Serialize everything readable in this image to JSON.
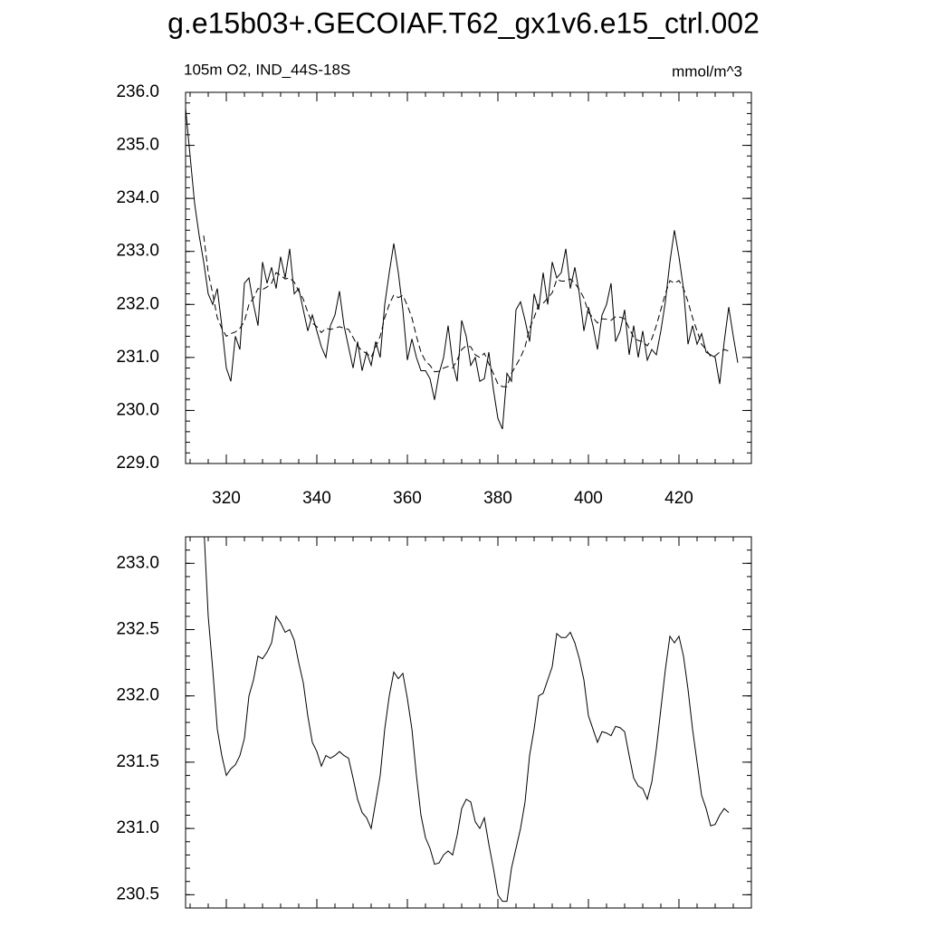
{
  "title": "g.e15b03+.GECOIAF.T62_gx1v6.e15_ctrl.002",
  "chart_data": [
    {
      "type": "line",
      "subtitle": "105m O2, IND_44S-18S",
      "units": "mmol/m^3",
      "xlim": [
        311,
        436
      ],
      "ylim": [
        229,
        236
      ],
      "xticks": [
        320,
        340,
        360,
        380,
        400,
        420
      ],
      "yticks": [
        {
          "value": 229,
          "label": "229.0"
        },
        {
          "value": 230,
          "label": "230.0"
        },
        {
          "value": 231,
          "label": "231.0"
        },
        {
          "value": 232,
          "label": "232.0"
        },
        {
          "value": 233,
          "label": "233.0"
        },
        {
          "value": 234,
          "label": "234.0"
        },
        {
          "value": 235,
          "label": "235.0"
        },
        {
          "value": 236,
          "label": "236.0"
        }
      ],
      "series": [
        {
          "color": "#000000",
          "dash": false,
          "x": [
            311,
            312,
            313,
            314,
            315,
            316,
            317,
            318,
            319,
            320,
            321,
            322,
            323,
            324,
            325,
            326,
            327,
            328,
            329,
            330,
            331,
            332,
            333,
            334,
            335,
            336,
            337,
            338,
            339,
            340,
            341,
            342,
            343,
            344,
            345,
            346,
            347,
            348,
            349,
            350,
            351,
            352,
            353,
            354,
            355,
            356,
            357,
            358,
            359,
            360,
            361,
            362,
            363,
            364,
            365,
            366,
            367,
            368,
            369,
            370,
            371,
            372,
            373,
            374,
            375,
            376,
            377,
            378,
            379,
            380,
            381,
            382,
            383,
            384,
            385,
            386,
            387,
            388,
            389,
            390,
            391,
            392,
            393,
            394,
            395,
            396,
            397,
            398,
            399,
            400,
            401,
            402,
            403,
            404,
            405,
            406,
            407,
            408,
            409,
            410,
            411,
            412,
            413,
            414,
            415,
            416,
            417,
            418,
            419,
            420,
            421,
            422,
            423,
            424,
            425,
            426,
            427,
            428,
            429,
            430,
            431,
            432,
            433
          ],
          "values": [
            235.7,
            234.8,
            233.9,
            233.3,
            232.8,
            232.2,
            232.0,
            232.3,
            231.6,
            230.8,
            230.55,
            231.4,
            231.15,
            232.4,
            232.5,
            232.0,
            231.6,
            232.8,
            232.4,
            232.7,
            232.3,
            232.9,
            232.5,
            233.05,
            232.2,
            232.3,
            231.9,
            231.5,
            231.8,
            231.5,
            231.2,
            231.0,
            231.6,
            231.8,
            232.25,
            231.6,
            231.2,
            230.8,
            231.3,
            230.75,
            231.1,
            230.85,
            231.3,
            231.0,
            232.0,
            232.6,
            233.15,
            232.6,
            231.9,
            230.95,
            231.35,
            231.0,
            230.75,
            230.75,
            230.6,
            230.2,
            230.7,
            231.0,
            231.6,
            230.9,
            230.55,
            231.7,
            231.4,
            230.85,
            231.0,
            230.55,
            230.6,
            231.1,
            230.4,
            229.85,
            229.65,
            230.7,
            230.55,
            231.9,
            232.05,
            231.7,
            231.3,
            232.2,
            231.9,
            232.6,
            232.0,
            232.8,
            232.5,
            232.6,
            233.05,
            232.3,
            232.7,
            232.2,
            231.5,
            231.95,
            231.6,
            231.15,
            231.8,
            232.0,
            232.4,
            231.3,
            231.5,
            231.9,
            231.05,
            231.6,
            231.0,
            231.5,
            230.95,
            231.15,
            231.05,
            231.5,
            232.05,
            232.8,
            233.4,
            232.9,
            232.3,
            231.25,
            231.6,
            231.25,
            231.45,
            231.1,
            231.05,
            231.0,
            230.5,
            231.3,
            231.95,
            231.4,
            230.9
          ]
        },
        {
          "color": "#000000",
          "dash": true,
          "x": [
            315,
            316,
            317,
            318,
            319,
            320,
            321,
            322,
            323,
            324,
            325,
            326,
            327,
            328,
            329,
            330,
            331,
            332,
            333,
            334,
            335,
            336,
            337,
            338,
            339,
            340,
            341,
            342,
            343,
            344,
            345,
            346,
            347,
            348,
            349,
            350,
            351,
            352,
            353,
            354,
            355,
            356,
            357,
            358,
            359,
            360,
            361,
            362,
            363,
            364,
            365,
            366,
            367,
            368,
            369,
            370,
            371,
            372,
            373,
            374,
            375,
            376,
            377,
            378,
            379,
            380,
            381,
            382,
            383,
            384,
            385,
            386,
            387,
            388,
            389,
            390,
            391,
            392,
            393,
            394,
            395,
            396,
            397,
            398,
            399,
            400,
            401,
            402,
            403,
            404,
            405,
            406,
            407,
            408,
            409,
            410,
            411,
            412,
            413,
            414,
            415,
            416,
            417,
            418,
            419,
            420,
            421,
            422,
            423,
            424,
            425,
            426,
            427,
            428,
            429,
            430,
            431
          ],
          "values": [
            233.3,
            232.6,
            232.2,
            231.75,
            231.55,
            231.4,
            231.45,
            231.48,
            231.55,
            231.68,
            232.0,
            232.12,
            232.3,
            232.28,
            232.33,
            232.4,
            232.6,
            232.55,
            232.48,
            232.5,
            232.42,
            232.25,
            232.1,
            231.85,
            231.65,
            231.58,
            231.47,
            231.55,
            231.53,
            231.55,
            231.58,
            231.55,
            231.53,
            231.38,
            231.22,
            231.12,
            231.08,
            231.0,
            231.2,
            231.4,
            231.75,
            232.0,
            232.18,
            232.13,
            232.17,
            231.98,
            231.75,
            231.4,
            231.1,
            230.93,
            230.85,
            230.73,
            230.74,
            230.8,
            230.83,
            230.8,
            230.95,
            231.15,
            231.22,
            231.2,
            231.05,
            231.0,
            231.08,
            230.88,
            230.7,
            230.5,
            230.45,
            230.45,
            230.7,
            230.85,
            231.0,
            231.2,
            231.55,
            231.75,
            232.0,
            232.02,
            232.12,
            232.22,
            232.47,
            232.44,
            232.44,
            232.48,
            232.4,
            232.28,
            232.12,
            231.85,
            231.75,
            231.65,
            231.73,
            231.72,
            231.7,
            231.77,
            231.76,
            231.73,
            231.55,
            231.38,
            231.32,
            231.3,
            231.22,
            231.35,
            231.6,
            231.9,
            232.2,
            232.45,
            232.4,
            232.45,
            232.3,
            232.05,
            231.75,
            231.5,
            231.25,
            231.15,
            231.02,
            231.03,
            231.1,
            231.15,
            231.12
          ]
        }
      ]
    },
    {
      "type": "line",
      "xlim": [
        311,
        436
      ],
      "ylim": [
        230.4,
        233.2
      ],
      "xticks": [
        320,
        340,
        360,
        380,
        400,
        420
      ],
      "yticks": [
        230.5,
        {
          "value": 231,
          "label": "231.0"
        },
        231.5,
        {
          "value": 232,
          "label": "232.0"
        },
        232.5,
        {
          "value": 233,
          "label": "233.0"
        }
      ],
      "series": [
        {
          "color": "#000000",
          "dash": false,
          "x": [
            315,
            316,
            317,
            318,
            319,
            320,
            321,
            322,
            323,
            324,
            325,
            326,
            327,
            328,
            329,
            330,
            331,
            332,
            333,
            334,
            335,
            336,
            337,
            338,
            339,
            340,
            341,
            342,
            343,
            344,
            345,
            346,
            347,
            348,
            349,
            350,
            351,
            352,
            353,
            354,
            355,
            356,
            357,
            358,
            359,
            360,
            361,
            362,
            363,
            364,
            365,
            366,
            367,
            368,
            369,
            370,
            371,
            372,
            373,
            374,
            375,
            376,
            377,
            378,
            379,
            380,
            381,
            382,
            383,
            384,
            385,
            386,
            387,
            388,
            389,
            390,
            391,
            392,
            393,
            394,
            395,
            396,
            397,
            398,
            399,
            400,
            401,
            402,
            403,
            404,
            405,
            406,
            407,
            408,
            409,
            410,
            411,
            412,
            413,
            414,
            415,
            416,
            417,
            418,
            419,
            420,
            421,
            422,
            423,
            424,
            425,
            426,
            427,
            428,
            429,
            430,
            431
          ],
          "values": [
            233.3,
            232.6,
            232.2,
            231.75,
            231.55,
            231.4,
            231.45,
            231.48,
            231.55,
            231.68,
            232.0,
            232.12,
            232.3,
            232.28,
            232.33,
            232.4,
            232.6,
            232.55,
            232.48,
            232.5,
            232.42,
            232.25,
            232.1,
            231.85,
            231.65,
            231.58,
            231.47,
            231.55,
            231.53,
            231.55,
            231.58,
            231.55,
            231.53,
            231.38,
            231.22,
            231.12,
            231.08,
            231.0,
            231.2,
            231.4,
            231.75,
            232.0,
            232.18,
            232.13,
            232.17,
            231.98,
            231.75,
            231.4,
            231.1,
            230.93,
            230.85,
            230.73,
            230.74,
            230.8,
            230.83,
            230.8,
            230.95,
            231.15,
            231.22,
            231.2,
            231.05,
            231.0,
            231.08,
            230.88,
            230.7,
            230.5,
            230.45,
            230.45,
            230.7,
            230.85,
            231.0,
            231.2,
            231.55,
            231.75,
            232.0,
            232.02,
            232.12,
            232.22,
            232.47,
            232.44,
            232.44,
            232.48,
            232.4,
            232.28,
            232.12,
            231.85,
            231.75,
            231.65,
            231.73,
            231.72,
            231.7,
            231.77,
            231.76,
            231.73,
            231.55,
            231.38,
            231.32,
            231.3,
            231.22,
            231.35,
            231.6,
            231.9,
            232.2,
            232.45,
            232.4,
            232.45,
            232.3,
            232.05,
            231.75,
            231.5,
            231.25,
            231.15,
            231.02,
            231.03,
            231.1,
            231.15,
            231.12
          ]
        }
      ]
    }
  ]
}
